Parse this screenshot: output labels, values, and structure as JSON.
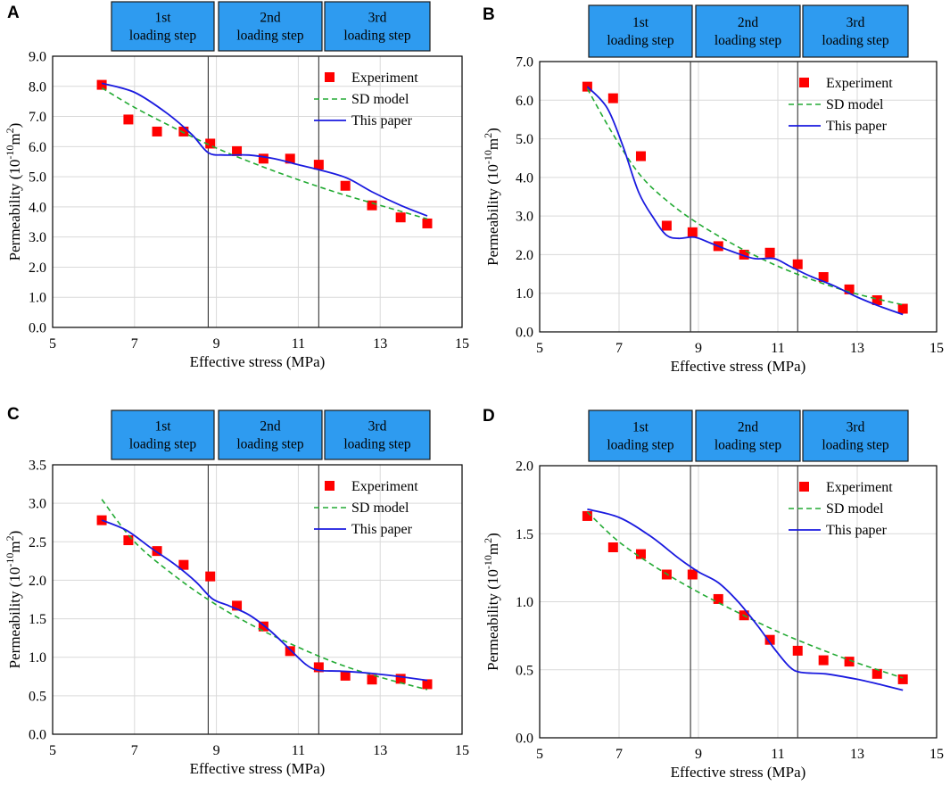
{
  "figure": {
    "panels_order": [
      "A",
      "B",
      "C",
      "D"
    ]
  },
  "colors": {
    "experiment": "#ff0000",
    "sd_model": "#22aa33",
    "this_paper": "#1a1adf",
    "step_box": "#2e9bf0",
    "grid": "#d9d9d9",
    "divider": "#333333"
  },
  "loading_steps": [
    {
      "line1": "1st",
      "line2": "loading step"
    },
    {
      "line1": "2nd",
      "line2": "loading step"
    },
    {
      "line1": "3rd",
      "line2": "loading step"
    }
  ],
  "chart_data": [
    {
      "panel": "A",
      "type": "scatter",
      "xlabel": "Effective stress (MPa)",
      "ylabel": "Permeability",
      "ylabel_unit_prefix": "(10",
      "ylabel_unit_exp": "-10",
      "ylabel_unit_suffix": "m",
      "ylabel_unit_sq": "2",
      "ylabel_unit_close": ")",
      "xlim": [
        5,
        15
      ],
      "ylim": [
        0,
        9
      ],
      "xticks": [
        "5",
        "7",
        "9",
        "11",
        "13",
        "15"
      ],
      "yticks": [
        "0.0",
        "1.0",
        "2.0",
        "3.0",
        "4.0",
        "5.0",
        "6.0",
        "7.0",
        "8.0",
        "9.0"
      ],
      "step_dividers": [
        8.8,
        11.5
      ],
      "legend": [
        "Experiment",
        "SD model",
        "This paper"
      ],
      "series": [
        {
          "name": "Experiment",
          "kind": "markers",
          "x": [
            6.2,
            6.85,
            7.55,
            8.2,
            8.85,
            9.5,
            10.15,
            10.8,
            11.5,
            12.15,
            12.8,
            13.5,
            14.15
          ],
          "y": [
            8.05,
            6.9,
            6.5,
            6.5,
            6.1,
            5.85,
            5.6,
            5.6,
            5.4,
            4.7,
            4.05,
            3.65,
            3.45
          ]
        },
        {
          "name": "SD model",
          "kind": "dashed",
          "x": [
            6.2,
            7.0,
            8.0,
            9.0,
            10.0,
            11.0,
            12.0,
            13.0,
            14.15
          ],
          "y": [
            7.95,
            7.3,
            6.6,
            5.95,
            5.4,
            4.9,
            4.45,
            4.05,
            3.6
          ]
        },
        {
          "name": "This paper",
          "kind": "solid",
          "x": [
            6.2,
            7.0,
            7.8,
            8.4,
            8.8,
            9.2,
            9.8,
            10.4,
            11.0,
            11.6,
            12.2,
            12.8,
            13.5,
            14.15
          ],
          "y": [
            8.1,
            7.8,
            7.1,
            6.4,
            5.8,
            5.72,
            5.72,
            5.6,
            5.4,
            5.2,
            4.95,
            4.5,
            4.05,
            3.7
          ]
        }
      ]
    },
    {
      "panel": "B",
      "type": "scatter",
      "xlabel": "Effective stress (MPa)",
      "ylabel": "Permeability",
      "ylabel_unit_prefix": "(10",
      "ylabel_unit_exp": "-10",
      "ylabel_unit_suffix": "m",
      "ylabel_unit_sq": "2",
      "ylabel_unit_close": ")",
      "xlim": [
        5,
        15
      ],
      "ylim": [
        0,
        7
      ],
      "xticks": [
        "5",
        "7",
        "9",
        "11",
        "13",
        "15"
      ],
      "yticks": [
        "0.0",
        "1.0",
        "2.0",
        "3.0",
        "4.0",
        "5.0",
        "6.0",
        "7.0"
      ],
      "step_dividers": [
        8.8,
        11.5
      ],
      "legend": [
        "Experiment",
        "SD model",
        "This paper"
      ],
      "series": [
        {
          "name": "Experiment",
          "kind": "markers",
          "x": [
            6.2,
            6.85,
            7.55,
            8.2,
            8.85,
            9.5,
            10.15,
            10.8,
            11.5,
            12.15,
            12.8,
            13.5,
            14.15
          ],
          "y": [
            6.35,
            6.05,
            4.55,
            2.75,
            2.58,
            2.22,
            2.0,
            2.05,
            1.75,
            1.42,
            1.1,
            0.82,
            0.6
          ]
        },
        {
          "name": "SD model",
          "kind": "dashed",
          "x": [
            6.2,
            6.8,
            7.5,
            8.2,
            9.0,
            10.0,
            11.0,
            12.0,
            13.0,
            14.15
          ],
          "y": [
            6.3,
            5.2,
            4.1,
            3.4,
            2.8,
            2.2,
            1.7,
            1.3,
            0.98,
            0.7
          ]
        },
        {
          "name": "This paper",
          "kind": "solid",
          "x": [
            6.2,
            6.7,
            7.1,
            7.5,
            7.9,
            8.2,
            8.5,
            8.9,
            9.3,
            9.8,
            10.4,
            10.9,
            11.3,
            11.8,
            12.4,
            13.0,
            13.6,
            14.15
          ],
          "y": [
            6.35,
            5.8,
            4.8,
            3.6,
            2.9,
            2.5,
            2.42,
            2.45,
            2.3,
            2.1,
            1.9,
            1.9,
            1.7,
            1.45,
            1.2,
            0.9,
            0.65,
            0.45
          ]
        }
      ]
    },
    {
      "panel": "C",
      "type": "scatter",
      "xlabel": "Effective stress (MPa)",
      "ylabel": "Permeability",
      "ylabel_unit_prefix": "(10",
      "ylabel_unit_exp": "-10",
      "ylabel_unit_suffix": "m",
      "ylabel_unit_sq": "2",
      "ylabel_unit_close": ")",
      "xlim": [
        5,
        15
      ],
      "ylim": [
        0,
        3.5
      ],
      "xticks": [
        "5",
        "7",
        "9",
        "11",
        "13",
        "15"
      ],
      "yticks": [
        "0.0",
        "0.5",
        "1.0",
        "1.5",
        "2.0",
        "2.5",
        "3.0",
        "3.5"
      ],
      "step_dividers": [
        8.8,
        11.5
      ],
      "legend": [
        "Experiment",
        "SD model",
        "This paper"
      ],
      "series": [
        {
          "name": "Experiment",
          "kind": "markers",
          "x": [
            6.2,
            6.85,
            7.55,
            8.2,
            8.85,
            9.5,
            10.15,
            10.8,
            11.5,
            12.15,
            12.8,
            13.5,
            14.15
          ],
          "y": [
            2.78,
            2.52,
            2.38,
            2.2,
            2.05,
            1.67,
            1.4,
            1.08,
            0.87,
            0.76,
            0.71,
            0.72,
            0.65
          ]
        },
        {
          "name": "SD model",
          "kind": "dashed",
          "x": [
            6.2,
            7.0,
            8.0,
            9.0,
            10.0,
            11.0,
            12.0,
            13.0,
            14.15
          ],
          "y": [
            3.05,
            2.5,
            2.05,
            1.68,
            1.38,
            1.13,
            0.91,
            0.74,
            0.58
          ]
        },
        {
          "name": "This paper",
          "kind": "solid",
          "x": [
            6.2,
            6.8,
            7.4,
            8.0,
            8.5,
            8.9,
            9.3,
            9.8,
            10.3,
            10.8,
            11.2,
            11.5,
            12.0,
            12.6,
            13.3,
            14.15
          ],
          "y": [
            2.78,
            2.65,
            2.42,
            2.2,
            1.98,
            1.76,
            1.67,
            1.55,
            1.35,
            1.1,
            0.9,
            0.83,
            0.82,
            0.8,
            0.76,
            0.7
          ]
        }
      ]
    },
    {
      "panel": "D",
      "type": "scatter",
      "xlabel": "Effective stress (MPa)",
      "ylabel": "Permeability",
      "ylabel_unit_prefix": "(10",
      "ylabel_unit_exp": "-10",
      "ylabel_unit_suffix": "m",
      "ylabel_unit_sq": "2",
      "ylabel_unit_close": ")",
      "xlim": [
        5,
        15
      ],
      "ylim": [
        0,
        2
      ],
      "xticks": [
        "5",
        "7",
        "9",
        "11",
        "13",
        "15"
      ],
      "yticks": [
        "0.0",
        "0.5",
        "1.0",
        "1.5",
        "2.0"
      ],
      "step_dividers": [
        8.8,
        11.5
      ],
      "legend": [
        "Experiment",
        "SD model",
        "This paper"
      ],
      "series": [
        {
          "name": "Experiment",
          "kind": "markers",
          "x": [
            6.2,
            6.85,
            7.55,
            8.2,
            8.85,
            9.5,
            10.15,
            10.8,
            11.5,
            12.15,
            12.8,
            13.5,
            14.15
          ],
          "y": [
            1.63,
            1.4,
            1.35,
            1.2,
            1.2,
            1.02,
            0.9,
            0.72,
            0.64,
            0.57,
            0.56,
            0.47,
            0.43
          ]
        },
        {
          "name": "SD model",
          "kind": "dashed",
          "x": [
            6.2,
            7.0,
            8.0,
            9.0,
            10.0,
            11.0,
            12.0,
            13.0,
            14.15
          ],
          "y": [
            1.66,
            1.44,
            1.24,
            1.07,
            0.92,
            0.78,
            0.66,
            0.55,
            0.44
          ]
        },
        {
          "name": "This paper",
          "kind": "solid",
          "x": [
            6.2,
            7.0,
            7.8,
            8.5,
            9.0,
            9.5,
            10.0,
            10.5,
            10.9,
            11.3,
            11.6,
            12.2,
            13.0,
            13.6,
            14.15
          ],
          "y": [
            1.68,
            1.62,
            1.48,
            1.32,
            1.22,
            1.14,
            1.0,
            0.82,
            0.66,
            0.52,
            0.48,
            0.47,
            0.43,
            0.39,
            0.35
          ]
        }
      ]
    }
  ]
}
